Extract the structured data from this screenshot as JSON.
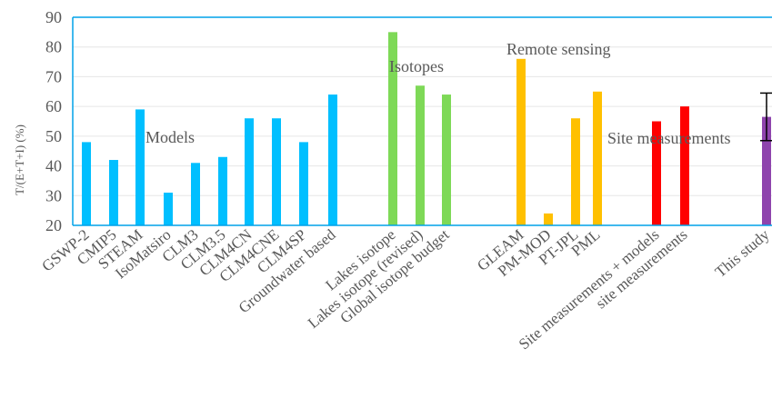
{
  "chart_data": {
    "type": "bar",
    "ylabel": "T/(E+T+I) (%)",
    "xlabel": "",
    "title": "",
    "ylim": [
      20,
      90
    ],
    "yticks": [
      20,
      30,
      40,
      50,
      60,
      70,
      80,
      90
    ],
    "grid": true,
    "categories": [
      "GSWP-2",
      "CMIP5",
      "STEAM",
      "IsoMatsiro",
      "CLM3",
      "CLM3.5",
      "CLM4CN",
      "CLM4CNE",
      "CLM4SP",
      "Groundwater based",
      "Lakes isotope",
      "Lakes isotope (revised)",
      "Global isotope budget",
      "GLEAM",
      "PM-MOD",
      "PT-JPL",
      "PML",
      "Site measurements + models",
      "site measurements",
      "This study"
    ],
    "values": [
      48,
      42,
      59,
      31,
      41,
      43,
      56,
      56,
      48,
      64,
      85,
      67,
      64,
      76,
      24,
      56,
      65,
      55,
      60,
      56.5
    ],
    "groups": [
      {
        "label": "Models",
        "color": "#00bfff",
        "members": [
          0,
          1,
          2,
          3,
          4,
          5,
          6,
          7,
          8,
          9
        ]
      },
      {
        "label": "Isotopes",
        "color": "#7ed957",
        "members": [
          10,
          11,
          12
        ]
      },
      {
        "label": "Remote sensing",
        "color": "#ffc000",
        "members": [
          13,
          14,
          15,
          16
        ]
      },
      {
        "label": "Site measurements",
        "color": "#ff0000",
        "members": [
          17,
          18
        ]
      },
      {
        "label": "",
        "color": "#8e44ad",
        "members": [
          19
        ]
      }
    ],
    "error_bars": [
      {
        "index": 19,
        "low": 48.5,
        "high": 64.5
      }
    ]
  },
  "colors": {
    "axis": "#00a2e8",
    "grid": "#e6e6e6",
    "text": "#595959",
    "error": "#000000"
  }
}
